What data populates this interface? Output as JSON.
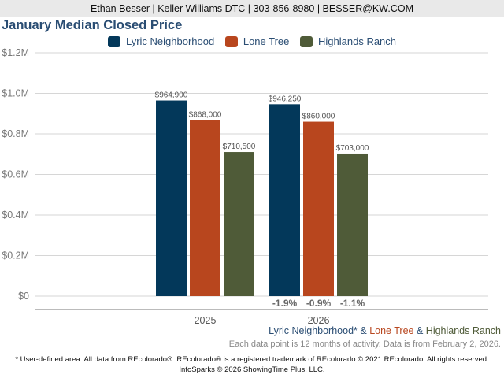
{
  "header": {
    "contact": "Ethan Besser | Keller Williams DTC | 303-856-8980 | BESSER@KW.COM"
  },
  "colors": {
    "lyric": "#03385a",
    "lone_tree": "#b8461e",
    "highlands": "#4f5b38",
    "title": "#2a4d73"
  },
  "chart_data": {
    "type": "bar",
    "title": "January Median Closed Price",
    "categories": [
      "2025",
      "2026"
    ],
    "series": [
      {
        "name": "Lyric Neighborhood",
        "values": [
          964900,
          946250
        ],
        "labels": [
          "$964,900",
          "$946,250"
        ],
        "color": "#03385a"
      },
      {
        "name": "Lone Tree",
        "values": [
          868000,
          860000
        ],
        "labels": [
          "$868,000",
          "$860,000"
        ],
        "color": "#b8461e"
      },
      {
        "name": "Highlands Ranch",
        "values": [
          710500,
          703000
        ],
        "labels": [
          "$710,500",
          "$703,000"
        ],
        "color": "#4f5b38"
      }
    ],
    "pct_change": [
      "-1.9%",
      "-0.9%",
      "-1.1%"
    ],
    "ylim": [
      0,
      1200000
    ],
    "yticks": [
      0,
      200000,
      400000,
      600000,
      800000,
      1000000,
      1200000
    ],
    "ytick_labels": [
      "$0",
      "$0.2M",
      "$0.4M",
      "$0.6M",
      "$0.8M",
      "$1.0M",
      "$1.2M"
    ],
    "xlabel": "",
    "ylabel": "",
    "grid": true,
    "legend_position": "top-center"
  },
  "footer": {
    "areas": {
      "lyric": "Lyric Neighborhood*",
      "amp1": " & ",
      "lone_tree": "Lone Tree",
      "amp2": " & ",
      "highlands": "Highlands Ranch"
    },
    "data_note": "Each data point is 12 months of activity. Data is from February 2, 2026.",
    "disclaimer": "* User-defined area. All data from REcolorado®. REcolorado® is a registered trademark of REcolorado © 2021 REcolorado. All rights reserved.",
    "copyright": "InfoSparks © 2026 ShowingTime Plus, LLC."
  }
}
